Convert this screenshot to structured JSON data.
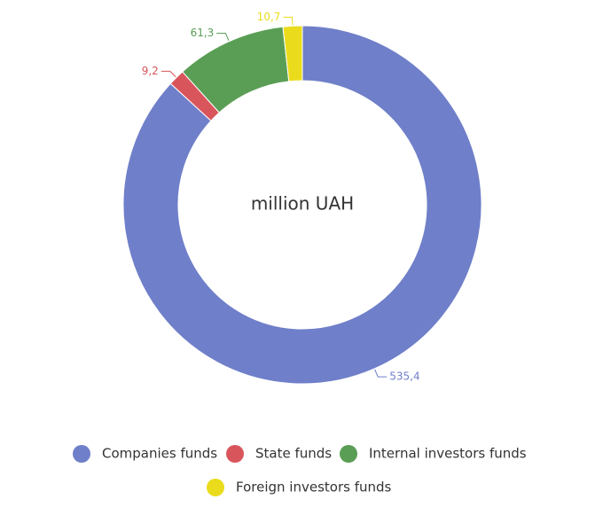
{
  "chart_data": {
    "type": "donut",
    "title": "million UAH",
    "categories": [
      "Companies funds",
      "State funds",
      "Internal investors funds",
      "Foreign investors funds"
    ],
    "values": [
      535.4,
      9.2,
      61.3,
      10.7
    ],
    "value_labels": [
      "535,4",
      "9,2",
      "61,3",
      "10,7"
    ],
    "colors": [
      "#6f7fc9",
      "#d9555c",
      "#5a9e55",
      "#eadc1c"
    ]
  }
}
